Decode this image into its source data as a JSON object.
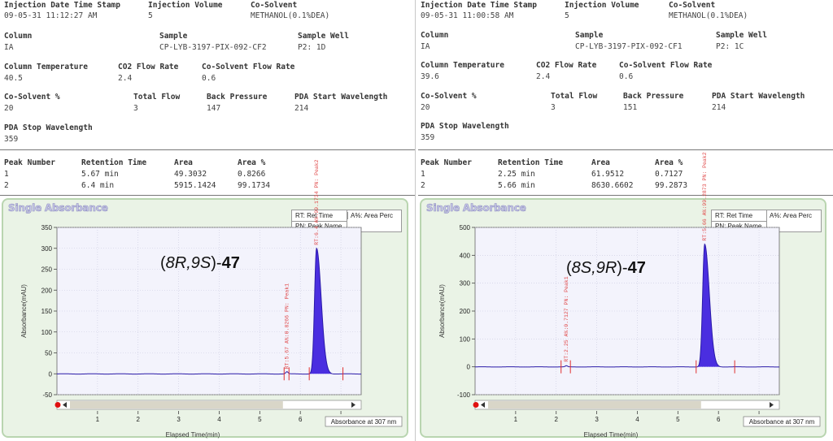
{
  "panels": [
    {
      "meta": {
        "inj_label": "Injection Date Time Stamp",
        "inj_value": "09-05-31 11:12:27 AM",
        "vol_label": "Injection Volume",
        "vol_value": "5",
        "cos_label": "Co-Solvent",
        "cos_value": "METHANOL(0.1%DEA)",
        "col_label": "Column",
        "col_value": "IA",
        "sample_label": "Sample",
        "sample_value": "CP-LYB-3197-PIX-092-CF2",
        "well_label": "Sample Well",
        "well_value": "P2: 1D",
        "ctemp_label": "Column Temperature",
        "ctemp_value": "40.5",
        "co2_label": "CO2 Flow Rate",
        "co2_value": "2.4",
        "cosflow_label": "Co-Solvent Flow Rate",
        "cosflow_value": "0.6",
        "cospct_label": "Co-Solvent %",
        "cospct_value": "20",
        "tflow_label": "Total Flow",
        "tflow_value": "3",
        "bp_label": "Back Pressure",
        "bp_value": "147",
        "pdastart_label": "PDA Start Wavelength",
        "pdastart_value": "214",
        "pdastop_label": "PDA Stop Wavelength",
        "pdastop_value": "359"
      },
      "peaks": {
        "headers": [
          "Peak Number",
          "Retention Time",
          "Area",
          "Area %"
        ],
        "rows": [
          [
            "1",
            "5.67 min",
            "49.3032",
            "0.8266"
          ],
          [
            "2",
            "6.4 min",
            "5915.1424",
            "99.1734"
          ]
        ]
      },
      "chart": {
        "title": "Single Absorbance",
        "legend": {
          "rt": "RT: Ret Time",
          "area": "A%: Area Perc",
          "pn": "PN: Peak Name"
        },
        "footer": "Absorbance at 307 nm",
        "xlabel": "Elapsed Time(min)",
        "ylabel": "Absorbance(mAU)",
        "compound_prefix": "(",
        "compound_config": "8R,9S",
        "compound_suffix": ")-",
        "compound_number": "47",
        "peak_annot_small": "RT:5.67 A%:0.8266 PN: Peak1",
        "peak_annot_big": "RT:6.4 A%:99.1734 PN: Peak2"
      }
    },
    {
      "meta": {
        "inj_label": "Injection Date Time Stamp",
        "inj_value": "09-05-31 11:00:58 AM",
        "vol_label": "Injection Volume",
        "vol_value": "5",
        "cos_label": "Co-Solvent",
        "cos_value": "METHANOL(0.1%DEA)",
        "col_label": "Column",
        "col_value": "IA",
        "sample_label": "Sample",
        "sample_value": "CP-LYB-3197-PIX-092-CF1",
        "well_label": "Sample Well",
        "well_value": "P2: 1C",
        "ctemp_label": "Column Temperature",
        "ctemp_value": "39.6",
        "co2_label": "CO2 Flow Rate",
        "co2_value": "2.4",
        "cosflow_label": "Co-Solvent Flow Rate",
        "cosflow_value": "0.6",
        "cospct_label": "Co-Solvent %",
        "cospct_value": "20",
        "tflow_label": "Total Flow",
        "tflow_value": "3",
        "bp_label": "Back Pressure",
        "bp_value": "151",
        "pdastart_label": "PDA Start Wavelength",
        "pdastart_value": "214",
        "pdastop_label": "PDA Stop Wavelength",
        "pdastop_value": "359"
      },
      "peaks": {
        "headers": [
          "Peak Number",
          "Retention Time",
          "Area",
          "Area %"
        ],
        "rows": [
          [
            "1",
            "2.25 min",
            "61.9512",
            "0.7127"
          ],
          [
            "2",
            "5.66 min",
            "8630.6602",
            "99.2873"
          ]
        ]
      },
      "chart": {
        "title": "Single Absorbance",
        "legend": {
          "rt": "RT: Ret Time",
          "area": "A%: Area Perc",
          "pn": "PN: Peak Name"
        },
        "footer": "Absorbance at 307 nm",
        "xlabel": "Elapsed Time(min)",
        "ylabel": "Absorbance(mAU)",
        "compound_prefix": "(",
        "compound_config": "8S,9R",
        "compound_suffix": ")-",
        "compound_number": "47",
        "peak_annot_small": "RT:2.25 A%:0.7127 PN: Peak1",
        "peak_annot_big": "RT:5.66 A%:99.2873 PN: Peak2"
      }
    }
  ],
  "chart_data": [
    {
      "type": "line",
      "title": "Single Absorbance",
      "xlabel": "Elapsed Time(min)",
      "ylabel": "Absorbance(mAU)",
      "xlim": [
        0,
        7.5
      ],
      "ylim": [
        -50,
        350
      ],
      "xticks": [
        1,
        2,
        3,
        4,
        5,
        6,
        7
      ],
      "yticks": [
        -50,
        0,
        50,
        100,
        150,
        200,
        250,
        300,
        350
      ],
      "grid": true,
      "legend": "top-right",
      "peaks": [
        {
          "rt": 5.67,
          "height": 5,
          "area_pct": 0.8266
        },
        {
          "rt": 6.4,
          "height": 300,
          "area_pct": 99.1734
        }
      ],
      "markers": [
        5.6,
        5.72,
        6.22,
        7.05
      ],
      "series": [
        {
          "name": "Absorbance at 307 nm",
          "color": "#2a1aa8",
          "fill": "#4a2ee0"
        }
      ]
    },
    {
      "type": "line",
      "title": "Single Absorbance",
      "xlabel": "Elapsed Time(min)",
      "ylabel": "Absorbance(mAU)",
      "xlim": [
        0,
        7.5
      ],
      "ylim": [
        -100,
        500
      ],
      "xticks": [
        1,
        2,
        3,
        4,
        5,
        6,
        7
      ],
      "yticks": [
        -100,
        0,
        100,
        200,
        300,
        400,
        500
      ],
      "grid": true,
      "legend": "top-right",
      "peaks": [
        {
          "rt": 2.25,
          "height": 4,
          "area_pct": 0.7127
        },
        {
          "rt": 5.66,
          "height": 440,
          "area_pct": 99.2873
        }
      ],
      "markers": [
        2.12,
        2.35,
        5.45,
        6.4
      ],
      "series": [
        {
          "name": "Absorbance at 307 nm",
          "color": "#2a1aa8",
          "fill": "#4a2ee0"
        }
      ]
    }
  ]
}
